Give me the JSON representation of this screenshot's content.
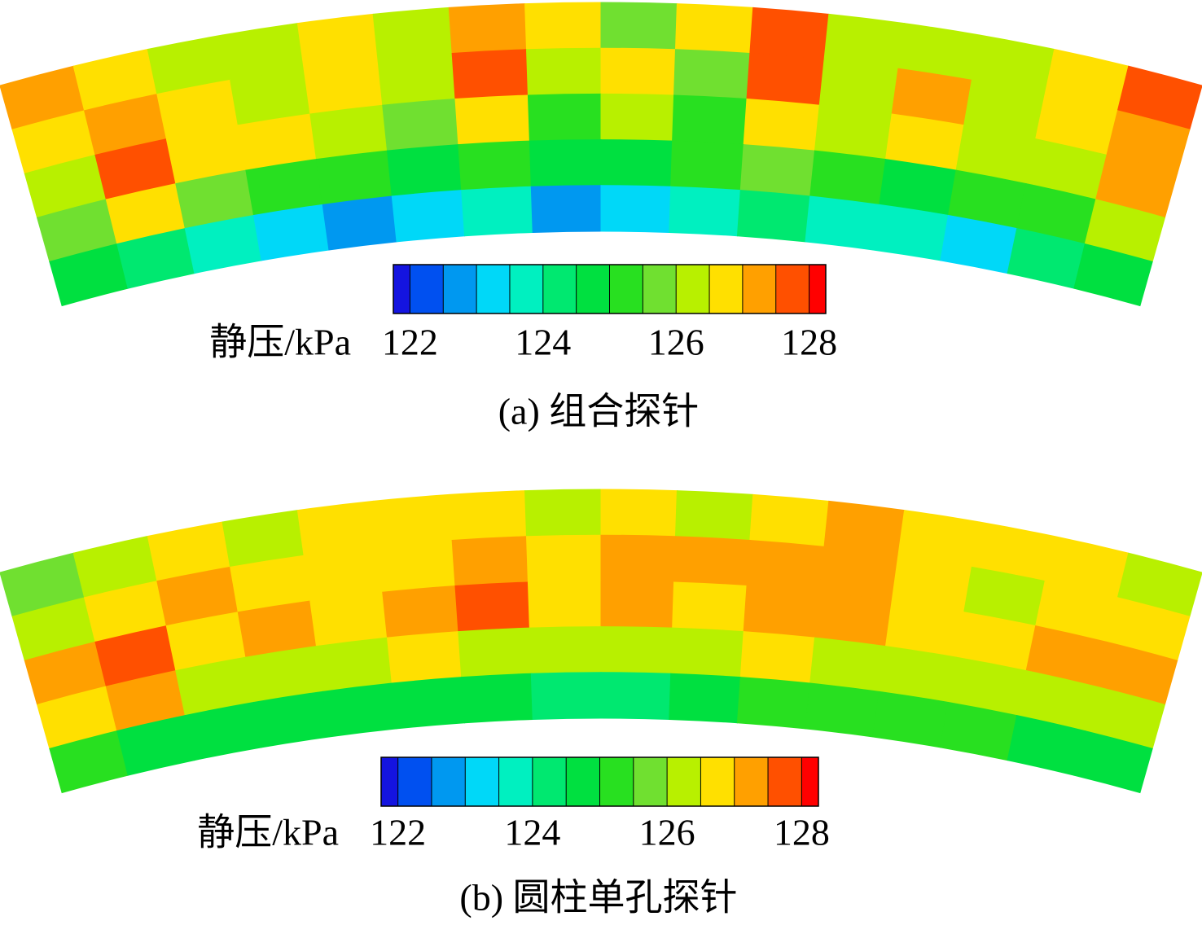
{
  "chart_data": [
    {
      "type": "contour",
      "caption": "(a) 组合探针",
      "colorbar_label": "静压/kPa",
      "clim": [
        121.75,
        128.25
      ],
      "levels": [
        122,
        122.5,
        123,
        123.5,
        124,
        124.5,
        125,
        125.5,
        126,
        126.5,
        127,
        127.5,
        128
      ],
      "cticks": [
        122,
        124,
        126,
        128
      ],
      "colors": [
        "#1414e0",
        "#0050f0",
        "#0098f0",
        "#00d8f8",
        "#00f0c0",
        "#00e870",
        "#00e040",
        "#28e020",
        "#70e030",
        "#b8f000",
        "#ffe000",
        "#ffa000",
        "#ff5000",
        "#ff0000"
      ],
      "values": [
        [
          127.2,
          126.8,
          126.3,
          126.0,
          126.5,
          126.2,
          127.3,
          126.8,
          125.8,
          126.5,
          127.5,
          126.4,
          126.0,
          126.3,
          126.8,
          127.6
        ],
        [
          126.6,
          127.4,
          126.8,
          126.4,
          126.8,
          126.0,
          127.6,
          126.2,
          126.9,
          125.7,
          127.6,
          126.3,
          127.0,
          126.4,
          126.5,
          127.3
        ],
        [
          126.3,
          127.5,
          126.7,
          126.6,
          126.2,
          125.6,
          126.8,
          125.4,
          126.3,
          125.4,
          126.7,
          126.0,
          126.6,
          126.0,
          126.3,
          127.4
        ],
        [
          125.8,
          126.6,
          125.8,
          125.4,
          125.1,
          124.7,
          125.0,
          124.6,
          124.9,
          125.0,
          125.5,
          125.2,
          124.9,
          125.3,
          125.3,
          126.4
        ],
        [
          124.6,
          124.2,
          123.6,
          123.2,
          122.8,
          123.4,
          123.6,
          122.8,
          123.4,
          123.8,
          124.4,
          123.8,
          123.8,
          123.2,
          124.0,
          124.8
        ]
      ]
    },
    {
      "type": "contour",
      "caption": "(b) 圆柱单孔探针",
      "colorbar_label": "静压/kPa",
      "clim": [
        121.75,
        128.25
      ],
      "levels": [
        122,
        122.5,
        123,
        123.5,
        124,
        124.5,
        125,
        125.5,
        126,
        126.5,
        127,
        127.5,
        128
      ],
      "cticks": [
        122,
        124,
        126,
        128
      ],
      "colors": [
        "#1414e0",
        "#0050f0",
        "#0098f0",
        "#00d8f8",
        "#00f0c0",
        "#00e870",
        "#00e040",
        "#28e020",
        "#70e030",
        "#b8f000",
        "#ffe000",
        "#ffa000",
        "#ff5000",
        "#ff0000"
      ],
      "values": [
        [
          125.6,
          126.3,
          126.8,
          126.4,
          126.6,
          126.5,
          126.7,
          126.4,
          126.8,
          126.3,
          126.5,
          127.0,
          126.9,
          126.6,
          126.7,
          126.4
        ],
        [
          126.4,
          126.9,
          127.4,
          126.6,
          126.8,
          126.5,
          127.3,
          126.9,
          127.2,
          127.1,
          127.4,
          127.2,
          126.6,
          126.4,
          126.8,
          126.9
        ],
        [
          127.2,
          127.5,
          126.8,
          127.1,
          126.6,
          127.4,
          127.6,
          126.8,
          127.3,
          126.9,
          127.2,
          127.3,
          126.6,
          126.6,
          127.0,
          127.2
        ],
        [
          126.9,
          127.2,
          126.4,
          126.2,
          126.3,
          126.6,
          126.3,
          126.0,
          126.4,
          126.1,
          126.8,
          126.3,
          126.2,
          126.0,
          126.3,
          126.4
        ],
        [
          125.0,
          124.9,
          124.6,
          124.6,
          124.8,
          124.8,
          124.6,
          124.2,
          124.4,
          124.6,
          125.2,
          125.0,
          125.4,
          125.4,
          124.9,
          124.8
        ]
      ]
    }
  ]
}
